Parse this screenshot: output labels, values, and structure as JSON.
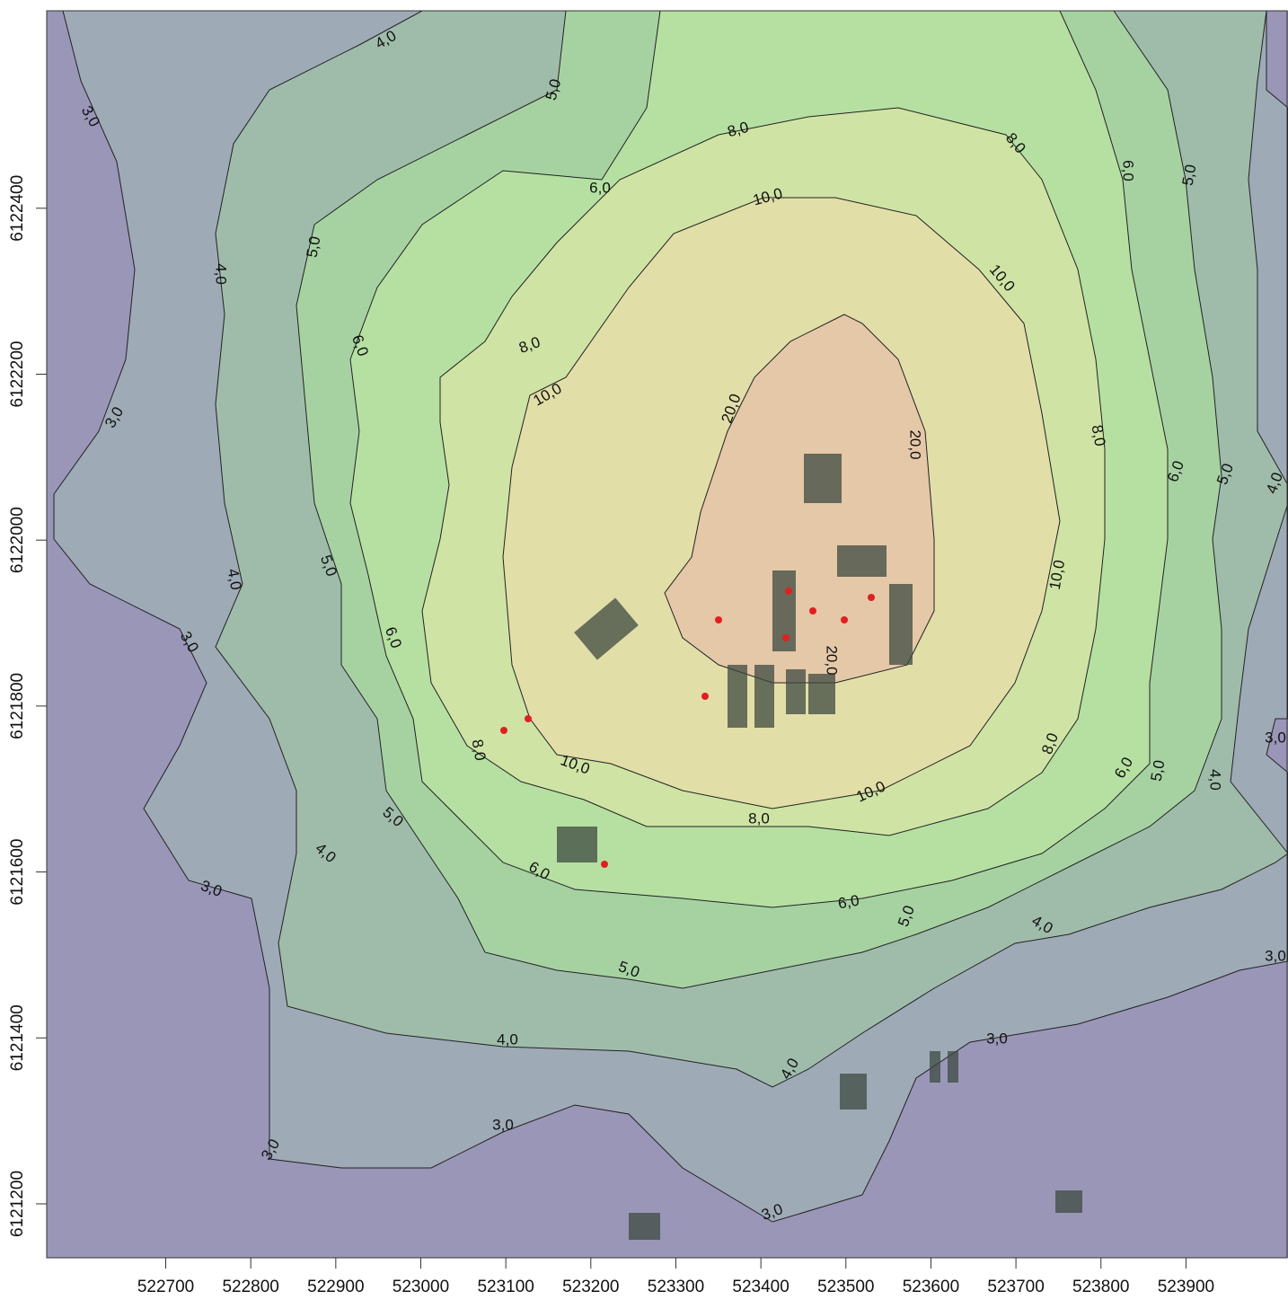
{
  "map_data": {
    "xlim": [
      522560,
      524020
    ],
    "ylim": [
      6121135,
      6122638
    ],
    "xticks": [
      522700,
      522800,
      522900,
      523000,
      523100,
      523200,
      523300,
      523400,
      523500,
      523600,
      523700,
      523800,
      523900
    ],
    "yticks": [
      6121200,
      6121400,
      6121600,
      6121800,
      6122000,
      6122200,
      6122400
    ],
    "contour_labels": [
      "4,0",
      "3,0",
      "5,0",
      "6,0",
      "8,0",
      "8,0",
      "10,0",
      "6,0",
      "5,0",
      "4,0",
      "5,0",
      "10,0",
      "8,0",
      "6,0",
      "3,0",
      "10,0",
      "20,0",
      "20,0",
      "8,0",
      "6,0",
      "5,0",
      "4,0",
      "5,0",
      "4,0",
      "10,0",
      "3,0",
      "6,0",
      "20,0",
      "8,0",
      "10,0",
      "8,0",
      "6,0",
      "5,0",
      "4,0",
      "3,0",
      "10,0",
      "5,0",
      "8,0",
      "4,0",
      "6,0",
      "3,0",
      "6,0",
      "5,0",
      "4,0",
      "3,0",
      "5,0",
      "4,0",
      "3,0",
      "4,0",
      "3,0",
      "3,0",
      "3,0"
    ]
  }
}
